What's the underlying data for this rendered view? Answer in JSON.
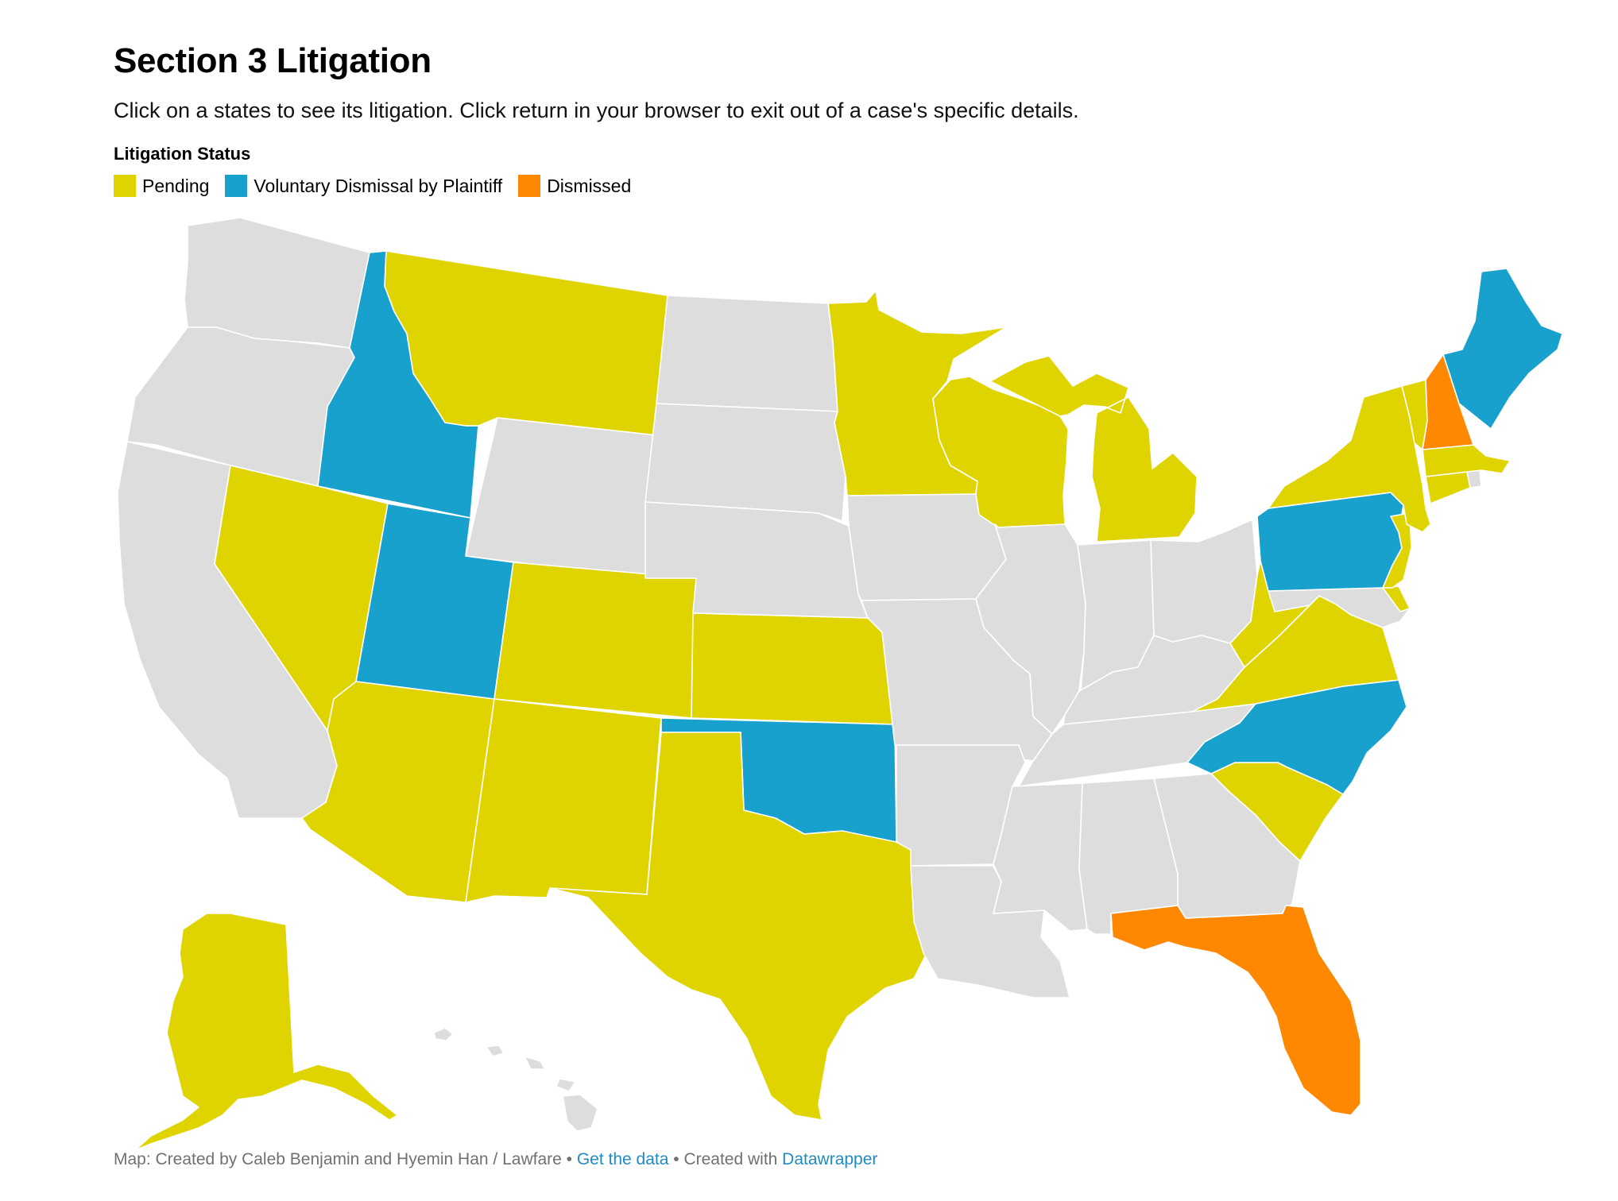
{
  "header": {
    "title": "Section 3 Litigation",
    "subtitle": "Click on a states to see its litigation. Click return in your browser to exit out of a case's specific details."
  },
  "legend": {
    "title": "Litigation Status",
    "items": [
      {
        "label": "Pending",
        "color": "#e0d400"
      },
      {
        "label": "Voluntary Dismissal by Plaintiff",
        "color": "#18a1cd"
      },
      {
        "label": "Dismissed",
        "color": "#ff8800"
      }
    ]
  },
  "map": {
    "no_data_color": "#dddddd",
    "states": [
      {
        "id": "WA",
        "status": "none"
      },
      {
        "id": "OR",
        "status": "none"
      },
      {
        "id": "CA",
        "status": "none"
      },
      {
        "id": "ID",
        "status": "Voluntary Dismissal by Plaintiff"
      },
      {
        "id": "NV",
        "status": "Pending"
      },
      {
        "id": "MT",
        "status": "Pending"
      },
      {
        "id": "WY",
        "status": "none"
      },
      {
        "id": "UT",
        "status": "Voluntary Dismissal by Plaintiff"
      },
      {
        "id": "AZ",
        "status": "Pending"
      },
      {
        "id": "CO",
        "status": "Pending"
      },
      {
        "id": "NM",
        "status": "Pending"
      },
      {
        "id": "ND",
        "status": "none"
      },
      {
        "id": "SD",
        "status": "none"
      },
      {
        "id": "NE",
        "status": "none"
      },
      {
        "id": "KS",
        "status": "Pending"
      },
      {
        "id": "OK",
        "status": "Voluntary Dismissal by Plaintiff"
      },
      {
        "id": "TX",
        "status": "Pending"
      },
      {
        "id": "MN",
        "status": "Pending"
      },
      {
        "id": "IA",
        "status": "none"
      },
      {
        "id": "MO",
        "status": "none"
      },
      {
        "id": "AR",
        "status": "none"
      },
      {
        "id": "LA",
        "status": "none"
      },
      {
        "id": "WI",
        "status": "Pending"
      },
      {
        "id": "MI",
        "status": "Pending"
      },
      {
        "id": "IL",
        "status": "none"
      },
      {
        "id": "IN",
        "status": "none"
      },
      {
        "id": "OH",
        "status": "none"
      },
      {
        "id": "KY",
        "status": "none"
      },
      {
        "id": "TN",
        "status": "none"
      },
      {
        "id": "MS",
        "status": "none"
      },
      {
        "id": "AL",
        "status": "none"
      },
      {
        "id": "GA",
        "status": "none"
      },
      {
        "id": "FL",
        "status": "Dismissed"
      },
      {
        "id": "SC",
        "status": "Pending"
      },
      {
        "id": "NC",
        "status": "Voluntary Dismissal by Plaintiff"
      },
      {
        "id": "VA",
        "status": "Pending"
      },
      {
        "id": "WV",
        "status": "Pending"
      },
      {
        "id": "MD",
        "status": "none"
      },
      {
        "id": "DE",
        "status": "Pending"
      },
      {
        "id": "PA",
        "status": "Voluntary Dismissal by Plaintiff"
      },
      {
        "id": "NJ",
        "status": "Pending"
      },
      {
        "id": "NY",
        "status": "Pending"
      },
      {
        "id": "CT",
        "status": "Pending"
      },
      {
        "id": "RI",
        "status": "none"
      },
      {
        "id": "MA",
        "status": "Pending"
      },
      {
        "id": "VT",
        "status": "Pending"
      },
      {
        "id": "NH",
        "status": "Dismissed"
      },
      {
        "id": "ME",
        "status": "Voluntary Dismissal by Plaintiff"
      },
      {
        "id": "AK",
        "status": "Pending"
      },
      {
        "id": "HI",
        "status": "none"
      }
    ]
  },
  "footer": {
    "credit": "Map: Created by Caleb Benjamin and Hyemin Han / Lawfare",
    "sep1": " • ",
    "data_link": "Get the data",
    "sep2": " • Created with ",
    "tool_link": "Datawrapper"
  }
}
